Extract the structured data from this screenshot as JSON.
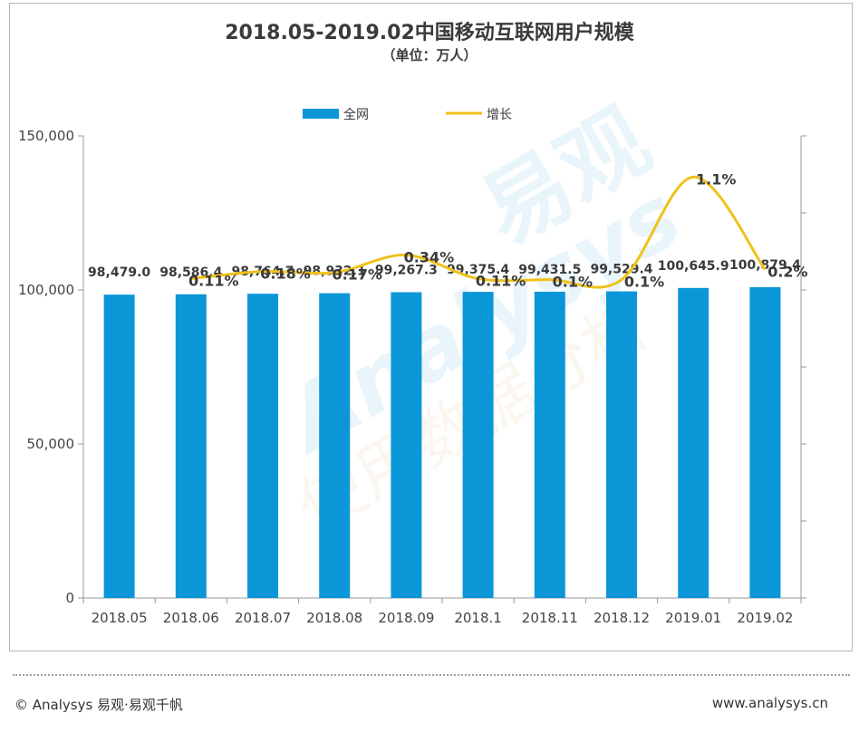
{
  "header": {
    "title": "2018.05-2019.02中国移动互联网用户规模",
    "subtitle": "（单位：万人）"
  },
  "footer": {
    "left": "© Analysys 易观·易观千帆",
    "right": "www.analysys.cn"
  },
  "watermark": {
    "text_en": "Analysys",
    "text_cn": "易观",
    "slogan": "使用数据分析"
  },
  "colors": {
    "bar": "#0b96d8",
    "line": "#f0c21a",
    "axis": "#9a9a9a",
    "text": "#3a3a3a"
  },
  "chart_data": {
    "type": "bar",
    "categories": [
      "2018.05",
      "2018.06",
      "2018.07",
      "2018.08",
      "2018.09",
      "2018.1",
      "2018.11",
      "2018.12",
      "2019.01",
      "2019.02"
    ],
    "ylim": [
      0,
      150000
    ],
    "yticks": [
      "0",
      "50,000",
      "100,000",
      "150,000"
    ],
    "ytick_values": [
      0,
      50000,
      100000,
      150000
    ],
    "legend_position": "top",
    "series": [
      {
        "name": "全网",
        "kind": "bar",
        "values": [
          98479.0,
          98586.4,
          98764.7,
          98932.1,
          99267.3,
          99375.4,
          99431.5,
          99529.4,
          100645.9,
          100879.4
        ],
        "labels": [
          "98,479.0",
          "98,586.4",
          "98,764.7",
          "98,932.1",
          "99,267.3",
          "99,375.4",
          "99,431.5",
          "99,529.4",
          "100,645.9",
          "100,879.4"
        ]
      },
      {
        "name": "增长",
        "kind": "line",
        "axis": "secondary",
        "values": [
          null,
          0.11,
          0.18,
          0.17,
          0.34,
          0.11,
          0.1,
          0.1,
          1.1,
          0.2
        ],
        "labels": [
          "",
          "0.11%",
          "0.18%",
          "0.17%",
          "0.34%",
          "0.11%",
          "0.1%",
          "0.1%",
          "1.1%",
          "0.2%"
        ]
      }
    ],
    "secondary_ylim": [
      -3,
      1.5
    ]
  }
}
